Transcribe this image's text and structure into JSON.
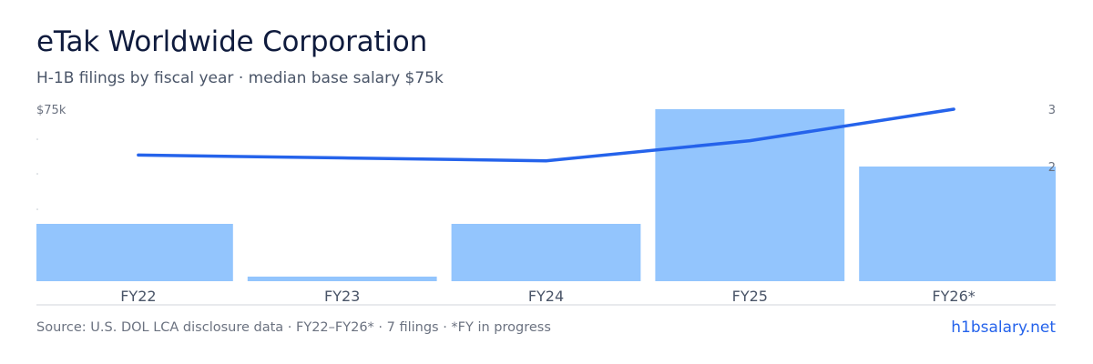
{
  "header": {
    "title": "eTak Worldwide Corporation",
    "subtitle": "H-1B filings by fiscal year · median base salary $75k"
  },
  "footer": {
    "source": "Source: U.S. DOL LCA disclosure data · FY22–FY26* · 7 filings · *FY in progress",
    "brand": "h1bsalary.net"
  },
  "colors": {
    "bar": "#93c5fd",
    "line": "#2563eb",
    "axis": "#d1d5db",
    "tick_text": "#4a5568",
    "axis_label_text": "#6b7280"
  },
  "chart_data": {
    "type": "bar",
    "categories": [
      "FY22",
      "FY23",
      "FY24",
      "FY25",
      "FY26*"
    ],
    "left_axis": {
      "top_label": "$75k",
      "max": 75000
    },
    "right_axis": {
      "tick_labels": [
        "3",
        "2"
      ],
      "ticks": [
        3,
        2
      ],
      "range": [
        0,
        3
      ]
    },
    "series": [
      {
        "type": "bar",
        "axis": "left",
        "values": [
          25000,
          2000,
          25000,
          75000,
          50000
        ]
      },
      {
        "type": "line",
        "axis": "right",
        "values": [
          2.2,
          2.15,
          2.1,
          2.45,
          3.0
        ]
      }
    ],
    "legend": "none",
    "grid": false
  }
}
